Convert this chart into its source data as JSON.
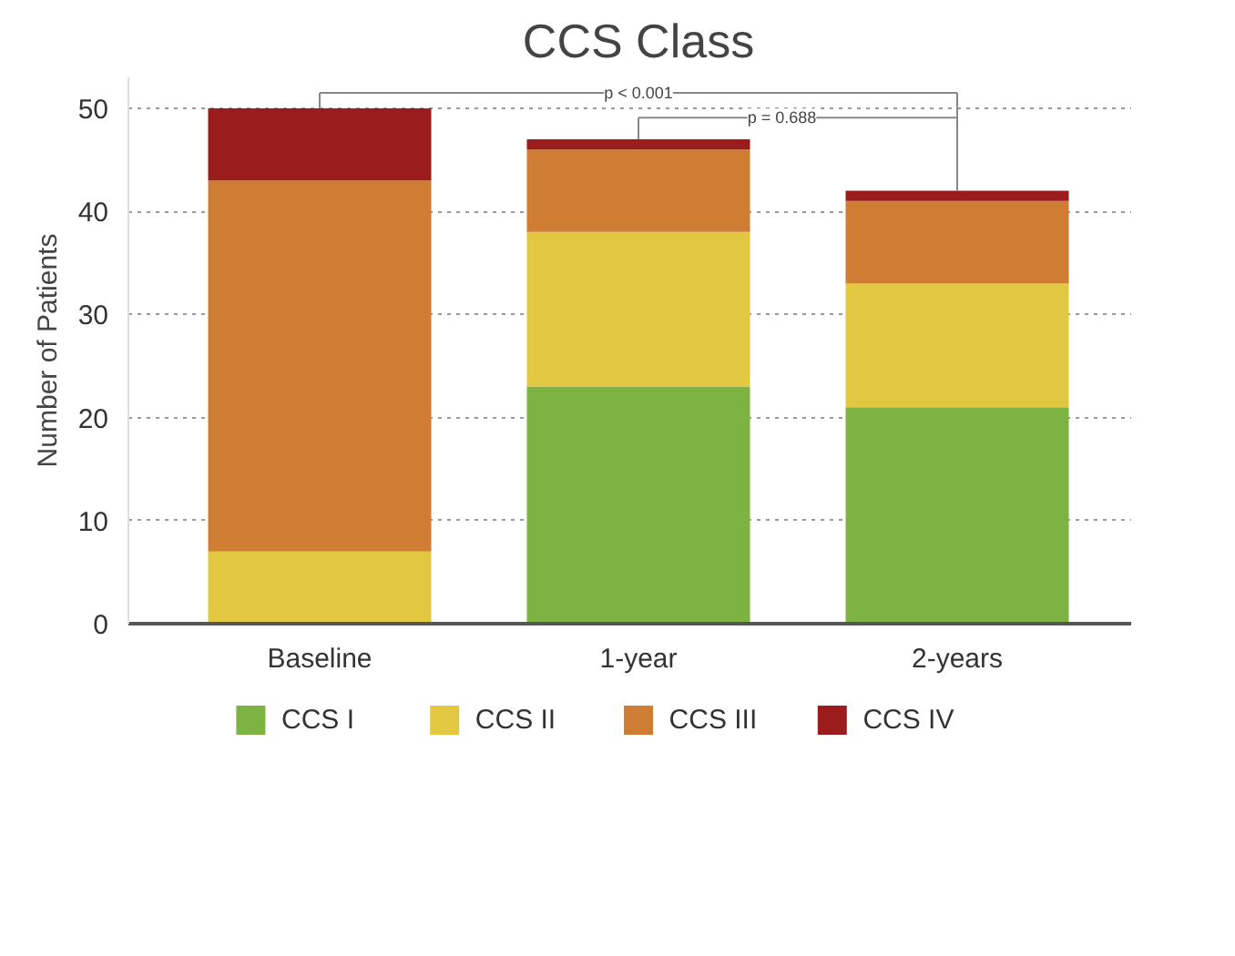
{
  "chart_data": {
    "type": "bar",
    "stacked": true,
    "title": "CCS Class",
    "ylabel": "Number of Patients",
    "categories": [
      "Baseline",
      "1-year",
      "2-years"
    ],
    "series": [
      {
        "name": "CCS I",
        "color": "#7cb342",
        "values": [
          0,
          23,
          21
        ]
      },
      {
        "name": "CCS II",
        "color": "#e2c840",
        "values": [
          7,
          15,
          12
        ]
      },
      {
        "name": "CCS III",
        "color": "#cf7d33",
        "values": [
          36,
          8,
          8
        ]
      },
      {
        "name": "CCS IV",
        "color": "#9b1c1c",
        "values": [
          7,
          1,
          1
        ]
      }
    ],
    "ylim": [
      0,
      53
    ],
    "yticks": [
      0,
      10,
      20,
      30,
      40,
      50
    ],
    "grid": "y",
    "legend": "bottom",
    "annotations": [
      "p < 0.001",
      "p = 0.688"
    ]
  }
}
